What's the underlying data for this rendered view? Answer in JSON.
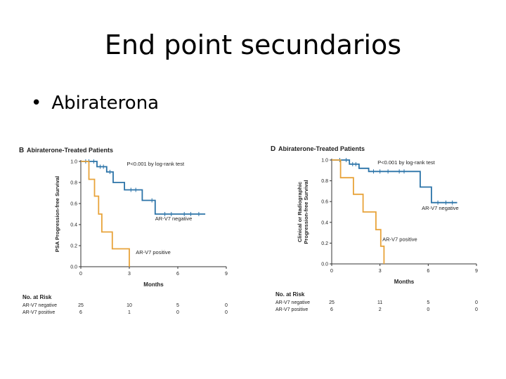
{
  "slide": {
    "title": "End point secundarios",
    "bullet": "Abiraterona",
    "bullet_marker": "•"
  },
  "chart_data": [
    {
      "type": "line",
      "subtype": "kaplan-meier",
      "panel_letter": "B",
      "title": "Abiraterone-Treated Patients",
      "ylabel": "PSA Progression-free Survival",
      "xlabel": "Months",
      "xlim": [
        0,
        9
      ],
      "ylim": [
        0,
        1
      ],
      "xticks": [
        0,
        3,
        6,
        9
      ],
      "yticks": [
        "0.0",
        "0.2",
        "0.4",
        "0.6",
        "0.8",
        "1.0"
      ],
      "annotation": "P<0.001 by log-rank test",
      "colors": {
        "negative": "#2b73a8",
        "positive": "#e8a33a"
      },
      "series": [
        {
          "name": "AR-V7 negative",
          "key": "negative",
          "steps": [
            [
              0,
              1.0
            ],
            [
              1.0,
              1.0
            ],
            [
              1.0,
              0.95
            ],
            [
              1.6,
              0.95
            ],
            [
              1.6,
              0.9
            ],
            [
              2.0,
              0.9
            ],
            [
              2.0,
              0.8
            ],
            [
              2.7,
              0.8
            ],
            [
              2.7,
              0.73
            ],
            [
              3.8,
              0.73
            ],
            [
              3.8,
              0.63
            ],
            [
              4.6,
              0.63
            ],
            [
              4.6,
              0.5
            ],
            [
              7.7,
              0.5
            ]
          ],
          "censors": [
            [
              0.3,
              1.0
            ],
            [
              0.5,
              1.0
            ],
            [
              0.8,
              1.0
            ],
            [
              1.2,
              0.95
            ],
            [
              1.4,
              0.95
            ],
            [
              1.8,
              0.9
            ],
            [
              3.1,
              0.73
            ],
            [
              3.4,
              0.73
            ],
            [
              4.4,
              0.63
            ],
            [
              5.2,
              0.5
            ],
            [
              5.6,
              0.5
            ],
            [
              6.4,
              0.5
            ],
            [
              6.8,
              0.5
            ],
            [
              7.3,
              0.5
            ]
          ],
          "label_pos": [
            4.6,
            0.44
          ]
        },
        {
          "name": "AR-V7 positive",
          "key": "positive",
          "steps": [
            [
              0,
              1.0
            ],
            [
              0.5,
              1.0
            ],
            [
              0.5,
              0.83
            ],
            [
              0.85,
              0.83
            ],
            [
              0.85,
              0.67
            ],
            [
              1.1,
              0.67
            ],
            [
              1.1,
              0.5
            ],
            [
              1.3,
              0.5
            ],
            [
              1.3,
              0.33
            ],
            [
              1.95,
              0.33
            ],
            [
              1.95,
              0.17
            ],
            [
              3.0,
              0.17
            ],
            [
              3.0,
              0.0
            ]
          ],
          "censors": [],
          "label_pos": [
            3.4,
            0.12
          ]
        }
      ],
      "at_risk": {
        "title": "No. at Risk",
        "times": [
          0,
          3,
          6,
          9
        ],
        "rows": [
          {
            "label": "AR-V7 negative",
            "values": [
              "25",
              "10",
              "5",
              "0"
            ]
          },
          {
            "label": "AR-V7 positive",
            "values": [
              "6",
              "1",
              "0",
              "0"
            ]
          }
        ]
      }
    },
    {
      "type": "line",
      "subtype": "kaplan-meier",
      "panel_letter": "D",
      "title": "Abiraterone-Treated Patients",
      "ylabel_lines": [
        "Clinical or Radiographic",
        "Progression-free Survival"
      ],
      "xlabel": "Months",
      "xlim": [
        0,
        9
      ],
      "ylim": [
        0,
        1
      ],
      "xticks": [
        0,
        3,
        6,
        9
      ],
      "yticks": [
        "0.0",
        "0.2",
        "0.4",
        "0.6",
        "0.8",
        "1.0"
      ],
      "annotation": "P<0.001 by log-rank test",
      "colors": {
        "negative": "#2b73a8",
        "positive": "#e8a33a"
      },
      "series": [
        {
          "name": "AR-V7 negative",
          "key": "negative",
          "steps": [
            [
              0,
              1.0
            ],
            [
              1.1,
              1.0
            ],
            [
              1.1,
              0.96
            ],
            [
              1.7,
              0.96
            ],
            [
              1.7,
              0.92
            ],
            [
              2.3,
              0.92
            ],
            [
              2.3,
              0.89
            ],
            [
              5.5,
              0.89
            ],
            [
              5.5,
              0.74
            ],
            [
              6.2,
              0.74
            ],
            [
              6.2,
              0.59
            ],
            [
              7.8,
              0.59
            ]
          ],
          "censors": [
            [
              0.5,
              1.0
            ],
            [
              0.9,
              1.0
            ],
            [
              1.3,
              0.96
            ],
            [
              1.5,
              0.96
            ],
            [
              2.6,
              0.89
            ],
            [
              3.0,
              0.89
            ],
            [
              3.5,
              0.89
            ],
            [
              4.2,
              0.89
            ],
            [
              4.5,
              0.89
            ],
            [
              6.6,
              0.59
            ],
            [
              7.1,
              0.59
            ],
            [
              7.5,
              0.59
            ]
          ],
          "label_pos": [
            5.6,
            0.52
          ]
        },
        {
          "name": "AR-V7 positive",
          "key": "positive",
          "steps": [
            [
              0,
              1.0
            ],
            [
              0.55,
              1.0
            ],
            [
              0.55,
              0.83
            ],
            [
              1.35,
              0.83
            ],
            [
              1.35,
              0.67
            ],
            [
              1.95,
              0.67
            ],
            [
              1.95,
              0.5
            ],
            [
              2.75,
              0.5
            ],
            [
              2.75,
              0.33
            ],
            [
              3.05,
              0.33
            ],
            [
              3.05,
              0.17
            ],
            [
              3.25,
              0.17
            ],
            [
              3.25,
              0.0
            ]
          ],
          "censors": [],
          "label_pos": [
            3.15,
            0.22
          ]
        }
      ],
      "at_risk": {
        "title": "No. at Risk",
        "times": [
          0,
          3,
          6,
          9
        ],
        "rows": [
          {
            "label": "AR-V7 negative",
            "values": [
              "25",
              "11",
              "5",
              "0"
            ]
          },
          {
            "label": "AR-V7 positive",
            "values": [
              "6",
              "2",
              "0",
              "0"
            ]
          }
        ]
      }
    }
  ]
}
